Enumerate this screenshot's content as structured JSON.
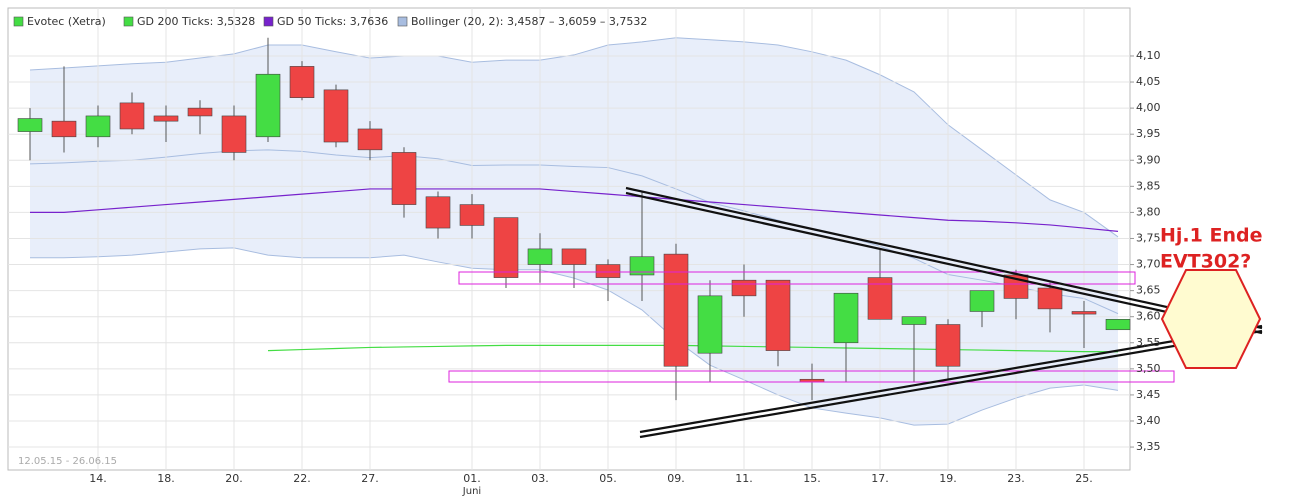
{
  "chart_data": {
    "type": "candlestick",
    "categories": [
      null,
      null,
      "14.",
      null,
      "18.",
      null,
      "20.",
      null,
      "22.",
      null,
      "27.",
      null,
      null,
      "01.",
      null,
      "03.",
      null,
      "05.",
      null,
      "09.",
      null,
      "11.",
      null,
      "15.",
      null,
      "17.",
      null,
      "19.",
      null,
      "23.",
      null,
      "25.",
      null
    ],
    "month_label": "Juni",
    "date_range": "12.05.15 - 26.06.15",
    "name": "Evotec (Xetra)",
    "up_color": "#44dd44",
    "down_color": "#ee4444",
    "open": [
      3.955,
      3.975,
      3.945,
      4.01,
      3.985,
      4.0,
      3.985,
      3.945,
      4.08,
      4.035,
      3.96,
      3.915,
      3.83,
      3.815,
      3.79,
      3.7,
      3.73,
      3.7,
      3.68,
      3.72,
      3.53,
      3.67,
      3.67,
      3.48,
      3.55,
      3.675,
      3.585,
      3.585,
      3.61,
      3.68,
      3.655,
      3.61,
      3.575
    ],
    "high": [
      4.0,
      4.08,
      4.005,
      4.03,
      4.005,
      4.015,
      4.005,
      4.135,
      4.09,
      4.045,
      3.975,
      3.925,
      3.84,
      3.835,
      3.79,
      3.76,
      3.73,
      3.71,
      3.84,
      3.74,
      3.67,
      3.7,
      3.67,
      3.51,
      3.645,
      3.73,
      3.6,
      3.595,
      3.65,
      3.69,
      3.665,
      3.63,
      3.595
    ],
    "low": [
      3.9,
      3.915,
      3.925,
      3.95,
      3.935,
      3.95,
      3.9,
      3.935,
      4.015,
      3.925,
      3.9,
      3.79,
      3.75,
      3.75,
      3.655,
      3.665,
      3.655,
      3.63,
      3.63,
      3.44,
      3.475,
      3.6,
      3.505,
      3.44,
      3.475,
      3.595,
      3.475,
      3.48,
      3.58,
      3.595,
      3.57,
      3.54,
      3.575
    ],
    "close": [
      3.98,
      3.945,
      3.985,
      3.96,
      3.975,
      3.985,
      3.915,
      4.065,
      4.02,
      3.935,
      3.92,
      3.815,
      3.77,
      3.775,
      3.675,
      3.73,
      3.7,
      3.675,
      3.715,
      3.505,
      3.64,
      3.64,
      3.535,
      3.475,
      3.645,
      3.595,
      3.6,
      3.505,
      3.65,
      3.635,
      3.615,
      3.605,
      3.595
    ],
    "series": [
      {
        "name": "GD 200 Ticks: 3,5328",
        "color": "#44dd44",
        "values": [
          null,
          null,
          null,
          null,
          null,
          null,
          null,
          3.535,
          3.537,
          3.539,
          3.541,
          3.542,
          3.543,
          3.544,
          3.545,
          3.545,
          3.545,
          3.545,
          3.545,
          3.545,
          3.544,
          3.543,
          3.542,
          3.541,
          3.54,
          3.539,
          3.538,
          3.537,
          3.536,
          3.535,
          3.534,
          3.533,
          3.5328
        ]
      },
      {
        "name": "GD 50 Ticks: 3,7636",
        "color": "#7722cc",
        "values": [
          3.8,
          3.8,
          3.805,
          3.81,
          3.815,
          3.82,
          3.825,
          3.83,
          3.835,
          3.84,
          3.845,
          3.845,
          3.845,
          3.845,
          3.845,
          3.845,
          3.84,
          3.835,
          3.83,
          3.825,
          3.82,
          3.815,
          3.81,
          3.805,
          3.8,
          3.795,
          3.79,
          3.785,
          3.783,
          3.78,
          3.776,
          3.77,
          3.7636
        ]
      }
    ],
    "bollinger": {
      "name": "Bollinger (20, 2): 3,4587 – 3,6059 – 3,7532",
      "color": "#a8bde0",
      "fill": "#e8eefa",
      "upper": [
        4.073,
        4.077,
        4.081,
        4.085,
        4.088,
        4.096,
        4.104,
        4.121,
        4.121,
        4.108,
        4.096,
        4.1,
        4.1,
        4.088,
        4.092,
        4.092,
        4.102,
        4.121,
        4.127,
        4.135,
        4.131,
        4.127,
        4.121,
        4.108,
        4.092,
        4.064,
        4.031,
        3.968,
        3.92,
        3.872,
        3.824,
        3.8,
        3.7532
      ],
      "middle": [
        3.893,
        3.895,
        3.898,
        3.9,
        3.906,
        3.913,
        3.918,
        3.92,
        3.917,
        3.91,
        3.905,
        3.909,
        3.903,
        3.89,
        3.891,
        3.891,
        3.888,
        3.886,
        3.87,
        3.845,
        3.819,
        3.803,
        3.785,
        3.767,
        3.754,
        3.735,
        3.712,
        3.681,
        3.67,
        3.658,
        3.644,
        3.635,
        3.6059
      ],
      "lower": [
        3.713,
        3.713,
        3.715,
        3.718,
        3.724,
        3.73,
        3.732,
        3.718,
        3.713,
        3.713,
        3.713,
        3.718,
        3.705,
        3.693,
        3.69,
        3.69,
        3.674,
        3.651,
        3.613,
        3.555,
        3.507,
        3.479,
        3.45,
        3.425,
        3.415,
        3.406,
        3.392,
        3.394,
        3.421,
        3.444,
        3.463,
        3.469,
        3.4587
      ]
    },
    "ylim": [
      3.306,
      4.192
    ],
    "yticks": [
      {
        "value": 3.35,
        "label": "3,35"
      },
      {
        "value": 3.4,
        "label": "3,40"
      },
      {
        "value": 3.45,
        "label": "3,45"
      },
      {
        "value": 3.5,
        "label": "3,50"
      },
      {
        "value": 3.55,
        "label": "3,55"
      },
      {
        "value": 3.6,
        "label": "3,60"
      },
      {
        "value": 3.65,
        "label": "3,65"
      },
      {
        "value": 3.7,
        "label": "3,70"
      },
      {
        "value": 3.75,
        "label": "3,75"
      },
      {
        "value": 3.8,
        "label": "3,80"
      },
      {
        "value": 3.85,
        "label": "3,85"
      },
      {
        "value": 3.9,
        "label": "3,90"
      },
      {
        "value": 3.95,
        "label": "3,95"
      },
      {
        "value": 4.0,
        "label": "4,00"
      },
      {
        "value": 4.05,
        "label": "4,05"
      },
      {
        "value": 4.1,
        "label": "4,10"
      }
    ],
    "grid": true,
    "annotations": [
      "Hj.1 Ende",
      "EVT302?"
    ]
  }
}
